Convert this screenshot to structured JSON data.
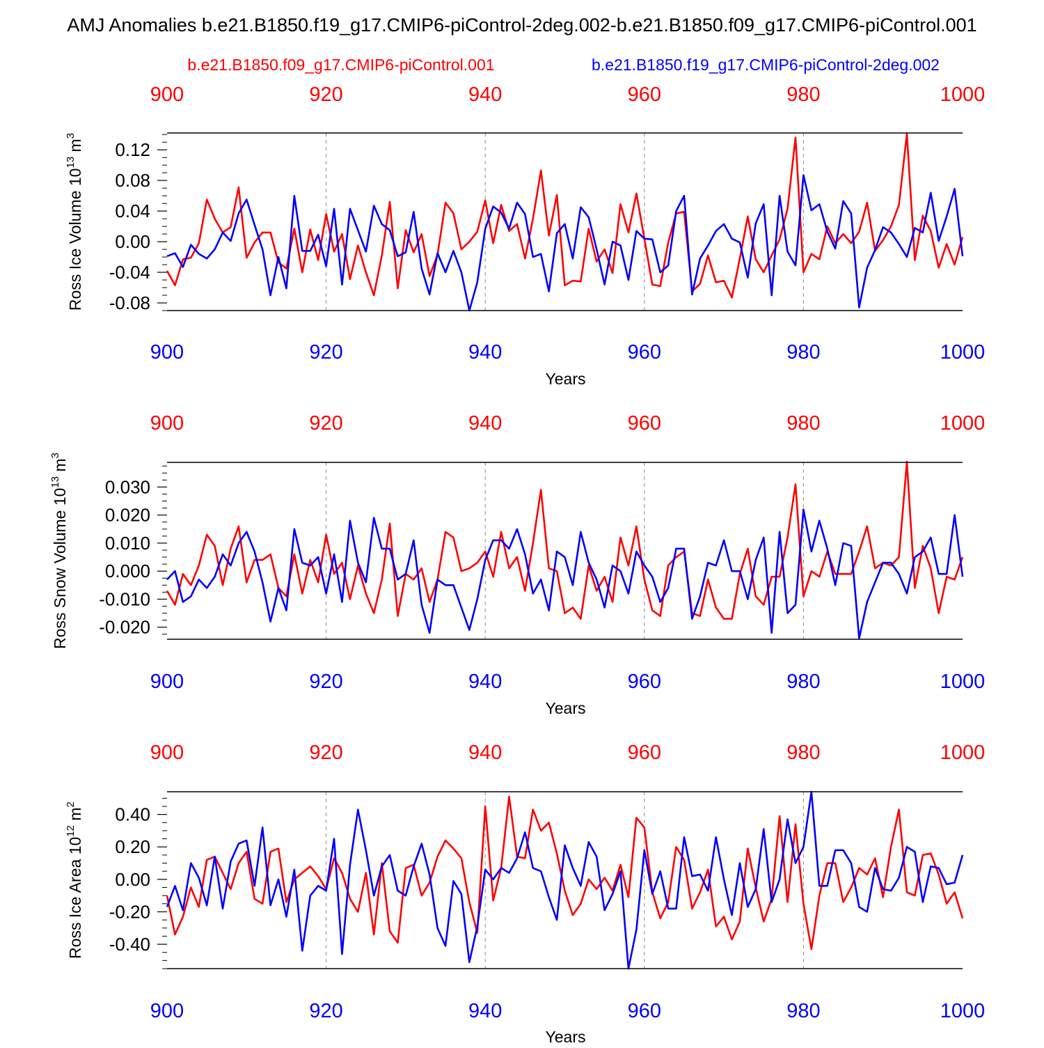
{
  "title": "AMJ Anomalies b.e21.B1850.f19_g17.CMIP6-piControl-2deg.002-b.e21.B1850.f09_g17.CMIP6-piControl.001",
  "legend": {
    "red_label": "b.e21.B1850.f09_g17.CMIP6-piControl.001",
    "blue_label": "b.e21.B1850.f19_g17.CMIP6-piControl-2deg.002"
  },
  "colors": {
    "red": "#ff0000",
    "blue": "#0000ff",
    "axis": "#000000",
    "grid": "#888888"
  },
  "chart_data": [
    {
      "type": "line",
      "ylabel_main": "Ross Ice Volume 10",
      "ylabel_exp": "13",
      "ylabel_unit": " m",
      "ylabel_unit_exp": "3",
      "xlabel": "Years",
      "xlim": [
        900,
        1000
      ],
      "ylim": [
        -0.09,
        0.142
      ],
      "x_ticks": [
        900,
        920,
        940,
        960,
        980,
        1000
      ],
      "x_tick_labels": [
        "900",
        "920",
        "940",
        "960",
        "980",
        "1000"
      ],
      "y_ticks": [
        -0.08,
        -0.04,
        0.0,
        0.04,
        0.08,
        0.12
      ],
      "y_tick_labels": [
        "-0.08",
        "-0.04",
        "0.00",
        "0.04",
        "0.08",
        "0.12"
      ],
      "y_minor_step": 0.01,
      "grid_x": [
        920,
        940,
        960,
        980
      ],
      "x_start": 900,
      "series": [
        {
          "color": "red",
          "values": [
            -0.038,
            -0.057,
            -0.023,
            -0.021,
            -0.002,
            0.055,
            0.03,
            0.012,
            0.019,
            0.071,
            -0.021,
            -0.001,
            0.012,
            0.012,
            -0.027,
            -0.035,
            0.017,
            -0.04,
            0.016,
            -0.024,
            0.036,
            -0.013,
            0.01,
            -0.049,
            -0.005,
            -0.04,
            -0.07,
            -0.018,
            0.052,
            -0.061,
            0.015,
            -0.014,
            0.01,
            -0.045,
            -0.017,
            0.051,
            0.037,
            -0.01,
            0.0,
            0.013,
            0.054,
            -0.002,
            0.048,
            0.014,
            0.023,
            -0.022,
            0.03,
            0.093,
            0.008,
            0.061,
            -0.057,
            -0.051,
            -0.052,
            0.017,
            -0.026,
            -0.01,
            -0.041,
            0.049,
            0.012,
            0.063,
            0.004,
            -0.056,
            -0.058,
            -0.001,
            0.037,
            0.039,
            -0.065,
            -0.055,
            -0.018,
            -0.053,
            -0.051,
            -0.073,
            -0.022,
            0.033,
            -0.023,
            -0.04,
            -0.018,
            0.003,
            0.043,
            0.136,
            -0.04,
            -0.016,
            -0.023,
            0.02,
            -0.002,
            0.01,
            -0.002,
            0.013,
            0.051,
            -0.012,
            0.002,
            0.02,
            0.048,
            0.141,
            -0.024,
            0.034,
            0.014,
            -0.034,
            -0.003,
            -0.03,
            0.006
          ]
        },
        {
          "color": "blue",
          "values": [
            -0.019,
            -0.015,
            -0.033,
            -0.004,
            -0.016,
            -0.022,
            -0.01,
            0.012,
            0.001,
            0.037,
            0.055,
            0.022,
            -0.01,
            -0.07,
            -0.02,
            -0.061,
            0.06,
            -0.012,
            -0.012,
            0.009,
            -0.032,
            0.043,
            -0.056,
            0.043,
            0.015,
            -0.013,
            0.047,
            0.023,
            0.015,
            -0.019,
            -0.014,
            0.039,
            -0.035,
            -0.069,
            -0.015,
            -0.04,
            -0.012,
            -0.04,
            -0.09,
            -0.053,
            0.017,
            0.046,
            0.038,
            0.017,
            0.051,
            0.036,
            -0.02,
            -0.016,
            -0.065,
            0.011,
            0.023,
            -0.022,
            0.045,
            0.032,
            -0.01,
            -0.056,
            0.0,
            -0.005,
            -0.05,
            0.014,
            0.004,
            0.003,
            -0.04,
            -0.031,
            0.04,
            0.06,
            -0.069,
            -0.022,
            -0.005,
            0.014,
            0.023,
            0.004,
            -0.001,
            -0.047,
            0.024,
            0.049,
            -0.07,
            0.06,
            -0.013,
            -0.031,
            0.087,
            0.041,
            0.049,
            0.013,
            -0.009,
            0.053,
            0.037,
            -0.086,
            -0.034,
            -0.011,
            0.019,
            0.012,
            -0.003,
            -0.02,
            0.018,
            0.012,
            0.064,
            0.001,
            0.033,
            0.069,
            -0.019
          ]
        }
      ]
    },
    {
      "type": "line",
      "ylabel_main": "Ross Snow Volume 10",
      "ylabel_exp": "13",
      "ylabel_unit": " m",
      "ylabel_unit_exp": "3",
      "xlabel": "Years",
      "xlim": [
        900,
        1000
      ],
      "ylim": [
        -0.0243,
        0.0388
      ],
      "x_ticks": [
        900,
        920,
        940,
        960,
        980,
        1000
      ],
      "x_tick_labels": [
        "900",
        "920",
        "940",
        "960",
        "980",
        "1000"
      ],
      "y_ticks": [
        -0.02,
        -0.01,
        0.0,
        0.01,
        0.02,
        0.03
      ],
      "y_tick_labels": [
        "-0.020",
        "-0.010",
        "0.000",
        "0.010",
        "0.020",
        "0.030"
      ],
      "y_minor_step": 0.0025,
      "grid_x": [
        920,
        940,
        960,
        980
      ],
      "x_start": 900,
      "series": [
        {
          "color": "red",
          "values": [
            -0.007,
            -0.012,
            -0.001,
            -0.005,
            0.002,
            0.013,
            0.009,
            -0.005,
            0.008,
            0.016,
            -0.004,
            0.004,
            0.004,
            0.006,
            -0.006,
            -0.009,
            0.006,
            -0.008,
            0.004,
            -0.004,
            0.013,
            -0.001,
            0.003,
            -0.01,
            0.002,
            -0.008,
            -0.015,
            -0.003,
            0.017,
            -0.016,
            -0.001,
            -0.003,
            0.001,
            -0.011,
            -0.003,
            0.014,
            0.012,
            0.0,
            0.001,
            0.003,
            0.007,
            -0.002,
            0.014,
            0.001,
            0.005,
            -0.007,
            0.01,
            0.029,
            0.001,
            0.0,
            -0.015,
            -0.013,
            -0.017,
            0.002,
            -0.007,
            -0.002,
            -0.011,
            0.012,
            0.002,
            0.016,
            -0.003,
            -0.014,
            -0.016,
            0.002,
            0.005,
            0.007,
            -0.015,
            -0.016,
            -0.003,
            -0.013,
            -0.017,
            -0.017,
            -0.001,
            0.008,
            -0.009,
            -0.012,
            -0.002,
            -0.002,
            0.012,
            0.031,
            -0.009,
            0.0,
            -0.002,
            0.007,
            -0.001,
            -0.001,
            -0.001,
            0.007,
            0.016,
            0.001,
            0.003,
            0.002,
            0.005,
            0.039,
            -0.006,
            0.009,
            0.001,
            -0.015,
            -0.002,
            -0.003,
            0.005
          ]
        },
        {
          "color": "blue",
          "values": [
            -0.003,
            0.0,
            -0.011,
            -0.009,
            -0.003,
            -0.006,
            -0.002,
            0.006,
            0.002,
            0.01,
            0.014,
            0.007,
            -0.004,
            -0.018,
            -0.006,
            -0.014,
            0.015,
            0.003,
            0.002,
            0.005,
            -0.008,
            0.006,
            -0.011,
            0.018,
            0.003,
            -0.004,
            0.019,
            0.008,
            0.008,
            -0.003,
            -0.001,
            0.011,
            -0.012,
            -0.022,
            -0.003,
            -0.005,
            -0.005,
            -0.013,
            -0.021,
            -0.01,
            0.004,
            0.011,
            0.011,
            0.008,
            0.015,
            0.006,
            -0.008,
            -0.003,
            -0.014,
            0.007,
            0.005,
            -0.005,
            0.014,
            0.003,
            -0.003,
            -0.013,
            0.002,
            0.0,
            -0.008,
            0.007,
            0.002,
            -0.002,
            -0.011,
            -0.006,
            0.008,
            0.008,
            -0.017,
            -0.009,
            0.003,
            0.002,
            0.011,
            0.0,
            0.0,
            -0.01,
            0.004,
            0.012,
            -0.022,
            0.014,
            -0.015,
            -0.012,
            0.022,
            0.007,
            0.018,
            0.008,
            -0.005,
            0.01,
            0.009,
            -0.024,
            -0.011,
            -0.004,
            0.003,
            0.003,
            -0.001,
            -0.008,
            0.005,
            0.007,
            0.012,
            -0.001,
            -0.001,
            0.02,
            -0.002
          ]
        }
      ]
    },
    {
      "type": "line",
      "ylabel_main": "Ross Ice Area 10",
      "ylabel_exp": "12",
      "ylabel_unit": " m",
      "ylabel_unit_exp": "2",
      "xlabel": "Years",
      "xlim": [
        900,
        1000
      ],
      "ylim": [
        -0.55,
        0.54
      ],
      "x_ticks": [
        900,
        920,
        940,
        960,
        980,
        1000
      ],
      "x_tick_labels": [
        "900",
        "920",
        "940",
        "960",
        "980",
        "1000"
      ],
      "y_ticks": [
        -0.4,
        -0.2,
        0.0,
        0.2,
        0.4
      ],
      "y_tick_labels": [
        "-0.40",
        "-0.20",
        "0.00",
        "0.20",
        "0.40"
      ],
      "y_minor_step": 0.05,
      "grid_x": [
        920,
        940,
        960,
        980
      ],
      "x_start": 900,
      "series": [
        {
          "color": "red",
          "values": [
            -0.1,
            -0.34,
            -0.23,
            -0.05,
            -0.17,
            0.12,
            0.14,
            0.04,
            -0.06,
            0.1,
            0.17,
            -0.12,
            -0.15,
            0.17,
            0.19,
            -0.14,
            0.0,
            0.04,
            0.08,
            0.02,
            -0.06,
            0.13,
            0.04,
            -0.12,
            -0.2,
            0.04,
            -0.34,
            0.1,
            -0.32,
            -0.39,
            0.07,
            0.09,
            -0.1,
            -0.02,
            0.14,
            0.24,
            0.19,
            0.13,
            -0.14,
            -0.33,
            0.45,
            -0.13,
            0.07,
            0.51,
            0.14,
            0.13,
            0.43,
            0.3,
            0.35,
            0.16,
            -0.07,
            -0.22,
            -0.15,
            0.0,
            -0.06,
            0.01,
            -0.07,
            0.09,
            -0.11,
            0.38,
            0.32,
            -0.08,
            -0.24,
            -0.14,
            0.2,
            0.12,
            -0.18,
            -0.08,
            0.06,
            -0.29,
            -0.23,
            -0.37,
            -0.26,
            0.19,
            -0.05,
            -0.26,
            -0.12,
            0.39,
            -0.14,
            0.34,
            -0.15,
            -0.43,
            -0.1,
            0.1,
            0.1,
            -0.14,
            -0.05,
            0.07,
            0.03,
            0.13,
            -0.11,
            0.2,
            0.43,
            -0.08,
            -0.1,
            0.15,
            0.16,
            0.03,
            -0.15,
            -0.08,
            -0.24
          ]
        },
        {
          "color": "blue",
          "values": [
            -0.17,
            -0.04,
            -0.19,
            0.1,
            0.01,
            -0.16,
            0.14,
            -0.18,
            0.11,
            0.22,
            0.24,
            -0.04,
            0.32,
            -0.16,
            0.0,
            -0.23,
            0.06,
            -0.44,
            -0.1,
            -0.04,
            -0.07,
            0.25,
            -0.46,
            0.09,
            0.43,
            0.18,
            -0.1,
            0.08,
            0.15,
            -0.07,
            -0.1,
            0.08,
            0.22,
            0.03,
            -0.3,
            -0.41,
            -0.01,
            -0.09,
            -0.51,
            -0.29,
            0.06,
            0.0,
            0.07,
            0.04,
            0.13,
            0.29,
            0.07,
            0.05,
            -0.11,
            -0.25,
            0.21,
            0.07,
            -0.04,
            0.23,
            0.14,
            -0.19,
            -0.09,
            0.05,
            -0.55,
            -0.31,
            0.18,
            -0.09,
            0.05,
            -0.18,
            -0.18,
            0.26,
            0.02,
            0.03,
            -0.07,
            0.26,
            0.0,
            -0.22,
            0.1,
            -0.17,
            -0.06,
            0.31,
            -0.14,
            0.0,
            0.37,
            0.1,
            0.2,
            0.54,
            -0.04,
            -0.04,
            0.18,
            0.18,
            0.1,
            -0.17,
            -0.2,
            0.07,
            -0.06,
            -0.07,
            0.01,
            0.2,
            0.17,
            -0.14,
            0.08,
            0.07,
            -0.03,
            -0.02,
            0.15
          ]
        }
      ]
    }
  ]
}
